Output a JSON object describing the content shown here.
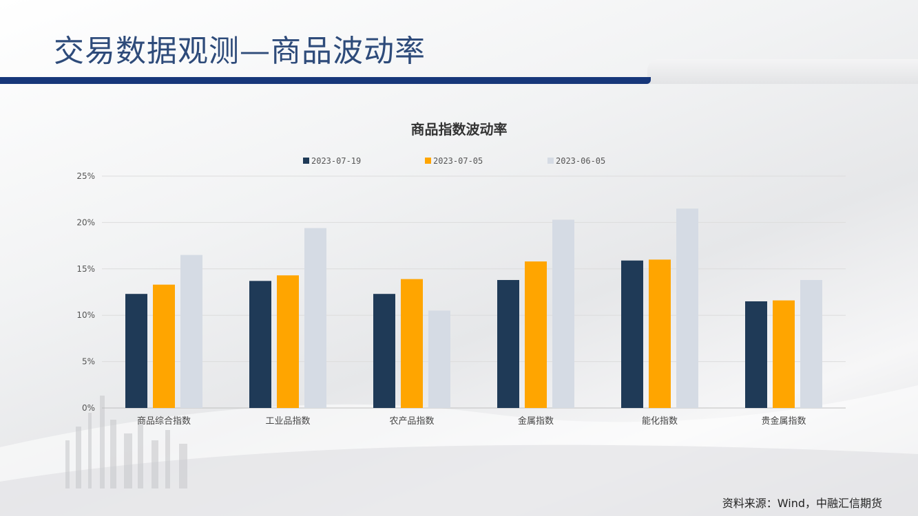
{
  "slide": {
    "title": "交易数据观测—商品波动率",
    "source": "资料来源：Wind，中融汇信期货"
  },
  "colors": {
    "title": "#2e4b7a",
    "band": "#17377a",
    "series": [
      "#1f3a57",
      "#ffa500",
      "#d5dbe4"
    ],
    "grid": "#dcdcdc"
  },
  "chart_data": {
    "type": "bar",
    "title": "商品指数波动率",
    "categories": [
      "商品综合指数",
      "工业品指数",
      "农产品指数",
      "金属指数",
      "能化指数",
      "贵金属指数"
    ],
    "series": [
      {
        "name": "2023-07-19",
        "values": [
          12.3,
          13.7,
          12.3,
          13.8,
          15.9,
          11.5
        ]
      },
      {
        "name": "2023-07-05",
        "values": [
          13.3,
          14.3,
          13.9,
          15.8,
          16.0,
          11.6
        ]
      },
      {
        "name": "2023-06-05",
        "values": [
          16.5,
          19.4,
          10.5,
          20.3,
          21.5,
          13.8
        ]
      }
    ],
    "yticks": [
      "0%",
      "5%",
      "10%",
      "15%",
      "20%",
      "25%"
    ],
    "ylim": [
      0,
      25
    ],
    "grid": true,
    "legend": "top-center"
  }
}
